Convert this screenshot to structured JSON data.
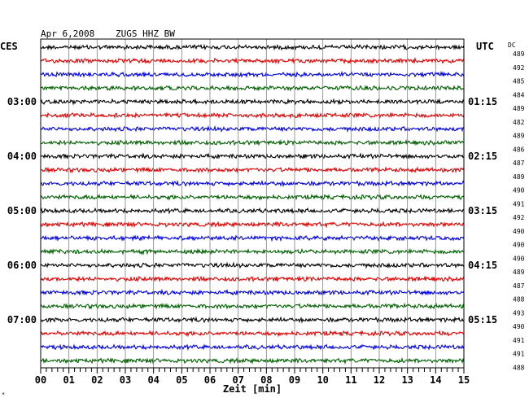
{
  "header": {
    "date": "Apr 6,2008",
    "station": "ZUGS HHZ BW",
    "left_tz": "CES",
    "right_tz": "UTC",
    "dc_label": "DC"
  },
  "colors": {
    "trace_cycle": [
      "#000000",
      "#e00000",
      "#0000e0",
      "#006000"
    ],
    "frame": "#000000",
    "grid": "#808080"
  },
  "chart_data": {
    "type": "line",
    "title": "Apr 6,2008   ZUGS HHZ BW",
    "xlabel": "Zeit [min]",
    "xlim": [
      0,
      15
    ],
    "x_ticks": [
      "00",
      "01",
      "02",
      "03",
      "04",
      "05",
      "06",
      "07",
      "08",
      "09",
      "10",
      "11",
      "12",
      "13",
      "14",
      "15"
    ],
    "left_hour_labels": [
      "03:00",
      "04:00",
      "05:00",
      "06:00",
      "07:00"
    ],
    "right_hour_labels": [
      "01:15",
      "02:15",
      "03:15",
      "04:15",
      "05:15"
    ],
    "grid": true,
    "dc_offsets": [
      489,
      492,
      485,
      484,
      489,
      482,
      489,
      486,
      487,
      489,
      490,
      491,
      492,
      490,
      490,
      490,
      489,
      487,
      488,
      493,
      490,
      491,
      491,
      488
    ]
  }
}
